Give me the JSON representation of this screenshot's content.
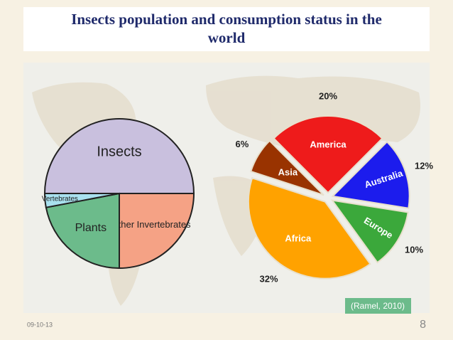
{
  "slide": {
    "title": "Insects population and consumption status in the world",
    "date": "09-10-13",
    "page": "8",
    "citation": "(Ramel, 2010)"
  },
  "chart_data": [
    {
      "type": "pie",
      "categories": [
        "Insects",
        "Other Invertebrates",
        "Plants",
        "Vertebrates"
      ],
      "values": [
        50,
        25,
        22,
        3
      ],
      "colors": [
        "#c9c0de",
        "#f5a285",
        "#6cbb8b",
        "#a9e1ef"
      ]
    },
    {
      "type": "pie",
      "categories": [
        "America",
        "Australia",
        "Europe",
        "Africa",
        "Asia"
      ],
      "values": [
        20,
        12,
        10,
        32,
        6
      ],
      "value_labels": [
        "20%",
        "12%",
        "10%",
        "32%",
        "6%"
      ],
      "colors": [
        "#ee1b1b",
        "#1c1ced",
        "#3ba83b",
        "#ffa200",
        "#993300"
      ]
    }
  ]
}
